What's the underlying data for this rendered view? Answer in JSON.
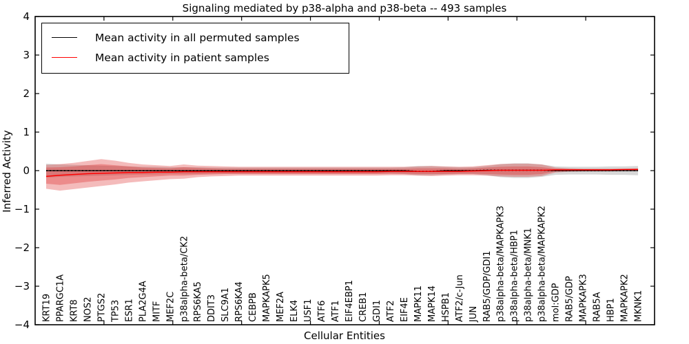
{
  "chart_data": {
    "type": "line",
    "title": "Signaling mediated by p38-alpha and p38-beta -- 493 samples",
    "xlabel": "Cellular Entities",
    "ylabel": "Inferred Activity",
    "legend": [
      {
        "label": "Mean activity in all permuted samples",
        "color": "#000000"
      },
      {
        "label": "Mean activity in patient samples",
        "color": "#ff0000"
      }
    ],
    "xlim": [
      0,
      45
    ],
    "ylim": [
      -4,
      4
    ],
    "xticks": [
      5,
      10,
      15,
      20,
      25,
      30,
      35,
      40,
      45
    ],
    "yticks": [
      {
        "v": 4,
        "label": "4"
      },
      {
        "v": 3,
        "label": "3"
      },
      {
        "v": 2,
        "label": "2"
      },
      {
        "v": 1,
        "label": "1"
      },
      {
        "v": 0,
        "label": "0"
      },
      {
        "v": -1,
        "label": "−1"
      },
      {
        "v": -2,
        "label": "−2"
      },
      {
        "v": -3,
        "label": "−3"
      },
      {
        "v": -4,
        "label": "−4"
      }
    ],
    "x_first_point": 0.8,
    "x_step": 1.0,
    "entities": [
      "KRT19",
      "PPARGC1A",
      "KRT8",
      "NOS2",
      "PTGS2",
      "TP53",
      "ESR1",
      "PLA2G4A",
      "MITF",
      "MEF2C",
      "p38alpha-beta/CK2",
      "RPS6KA5",
      "DDIT3",
      "SLC9A1",
      "RPS6KA4",
      "CEBPB",
      "MAPKAPK5",
      "MEF2A",
      "ELK4",
      "USF1",
      "ATF6",
      "ATF1",
      "EIF4EBP1",
      "CREB1",
      "GDI1",
      "ATF2",
      "EIF4E",
      "MAPK11",
      "MAPK14",
      "HSPB1",
      "ATF2/c-Jun",
      "JUN",
      "RAB5/GDP/GDI1",
      "p38alpha-beta/MAPKAPK3",
      "p38alpha-beta/HBP1",
      "p38alpha-beta/MNK1",
      "p38alpha-beta/MAPKAPK2",
      "mol:GDP",
      "RAB5/GDP",
      "MAPKAPK3",
      "RAB5A",
      "HBP1",
      "MAPKAPK2",
      "MKNK1"
    ],
    "series": [
      {
        "name": "mean-permuted",
        "color": "#000000",
        "style": "solid-plus-dotted-overlay",
        "values": [
          0.0,
          0.0,
          0.0,
          0.0,
          0.0,
          0.0,
          0.0,
          0.0,
          0.0,
          0.0,
          0.0,
          0.0,
          0.0,
          0.0,
          0.0,
          0.0,
          0.0,
          0.0,
          0.0,
          0.0,
          0.0,
          0.0,
          0.0,
          0.0,
          0.0,
          0.0,
          0.0,
          -0.02,
          -0.02,
          0.0,
          0.0,
          0.0,
          0.01,
          0.01,
          0.01,
          0.01,
          0.01,
          0.0,
          0.0,
          0.0,
          0.0,
          0.0,
          0.0,
          0.0
        ]
      },
      {
        "name": "mean-patient",
        "color": "#ff0000",
        "style": "solid",
        "values": [
          -0.15,
          -0.12,
          -0.1,
          -0.08,
          -0.07,
          -0.06,
          -0.05,
          -0.05,
          -0.04,
          -0.04,
          -0.03,
          -0.03,
          -0.03,
          -0.03,
          -0.03,
          -0.03,
          -0.03,
          -0.03,
          -0.03,
          -0.03,
          -0.03,
          -0.03,
          -0.03,
          -0.03,
          -0.03,
          -0.02,
          -0.02,
          -0.02,
          -0.02,
          -0.02,
          -0.02,
          -0.01,
          0.0,
          0.01,
          0.01,
          0.01,
          0.01,
          0.02,
          0.02,
          0.02,
          0.02,
          0.02,
          0.03,
          0.03
        ]
      }
    ],
    "bands": [
      {
        "name": "permuted-spread",
        "color": "rgba(110,110,110,0.28)",
        "upper": [
          0.18,
          0.16,
          0.15,
          0.14,
          0.13,
          0.12,
          0.11,
          0.1,
          0.1,
          0.09,
          0.09,
          0.09,
          0.08,
          0.08,
          0.08,
          0.08,
          0.08,
          0.08,
          0.08,
          0.08,
          0.08,
          0.08,
          0.08,
          0.08,
          0.08,
          0.08,
          0.09,
          0.12,
          0.12,
          0.1,
          0.09,
          0.09,
          0.12,
          0.17,
          0.19,
          0.19,
          0.16,
          0.11,
          0.1,
          0.1,
          0.1,
          0.11,
          0.11,
          0.12
        ],
        "lower": [
          -0.18,
          -0.16,
          -0.15,
          -0.14,
          -0.13,
          -0.12,
          -0.11,
          -0.1,
          -0.1,
          -0.09,
          -0.09,
          -0.09,
          -0.08,
          -0.08,
          -0.08,
          -0.08,
          -0.08,
          -0.08,
          -0.08,
          -0.08,
          -0.08,
          -0.08,
          -0.08,
          -0.08,
          -0.08,
          -0.08,
          -0.09,
          -0.12,
          -0.12,
          -0.1,
          -0.09,
          -0.09,
          -0.12,
          -0.17,
          -0.19,
          -0.19,
          -0.16,
          -0.11,
          -0.1,
          -0.1,
          -0.1,
          -0.11,
          -0.11,
          -0.12
        ]
      },
      {
        "name": "patient-spread-outer",
        "color": "rgba(220,30,30,0.30)",
        "upper": [
          0.15,
          0.17,
          0.2,
          0.25,
          0.3,
          0.26,
          0.2,
          0.16,
          0.14,
          0.12,
          0.16,
          0.13,
          0.12,
          0.11,
          0.1,
          0.1,
          0.1,
          0.1,
          0.1,
          0.1,
          0.1,
          0.1,
          0.1,
          0.1,
          0.1,
          0.1,
          0.1,
          0.11,
          0.12,
          0.11,
          0.1,
          0.11,
          0.14,
          0.17,
          0.18,
          0.18,
          0.16,
          0.08,
          0.06,
          0.05,
          0.05,
          0.05,
          0.05,
          0.06
        ],
        "lower": [
          -0.47,
          -0.52,
          -0.48,
          -0.44,
          -0.4,
          -0.36,
          -0.31,
          -0.28,
          -0.25,
          -0.22,
          -0.21,
          -0.17,
          -0.15,
          -0.14,
          -0.13,
          -0.13,
          -0.13,
          -0.13,
          -0.13,
          -0.13,
          -0.13,
          -0.13,
          -0.13,
          -0.13,
          -0.13,
          -0.12,
          -0.12,
          -0.13,
          -0.14,
          -0.13,
          -0.12,
          -0.12,
          -0.13,
          -0.15,
          -0.16,
          -0.16,
          -0.14,
          -0.05,
          -0.03,
          -0.02,
          -0.02,
          -0.02,
          -0.01,
          0.0
        ]
      },
      {
        "name": "patient-spread-inner",
        "color": "rgba(220,30,30,0.30)",
        "upper": [
          0.08,
          0.09,
          0.11,
          0.14,
          0.17,
          0.14,
          0.11,
          0.08,
          0.07,
          0.06,
          0.09,
          0.07,
          0.06,
          0.05,
          0.05,
          0.05,
          0.05,
          0.05,
          0.05,
          0.05,
          0.05,
          0.05,
          0.05,
          0.05,
          0.05,
          0.05,
          0.05,
          0.06,
          0.06,
          0.06,
          0.05,
          0.06,
          0.08,
          0.1,
          0.11,
          0.11,
          0.09,
          0.05,
          0.04,
          0.04,
          0.04,
          0.04,
          0.04,
          0.05
        ],
        "lower": [
          -0.34,
          -0.37,
          -0.33,
          -0.29,
          -0.26,
          -0.23,
          -0.19,
          -0.17,
          -0.15,
          -0.13,
          -0.13,
          -0.11,
          -0.1,
          -0.09,
          -0.09,
          -0.09,
          -0.09,
          -0.09,
          -0.09,
          -0.09,
          -0.09,
          -0.09,
          -0.09,
          -0.09,
          -0.09,
          -0.08,
          -0.08,
          -0.09,
          -0.09,
          -0.09,
          -0.08,
          -0.08,
          -0.09,
          -0.1,
          -0.11,
          -0.11,
          -0.09,
          -0.02,
          -0.01,
          0.0,
          0.0,
          0.0,
          0.01,
          0.01
        ]
      }
    ]
  }
}
